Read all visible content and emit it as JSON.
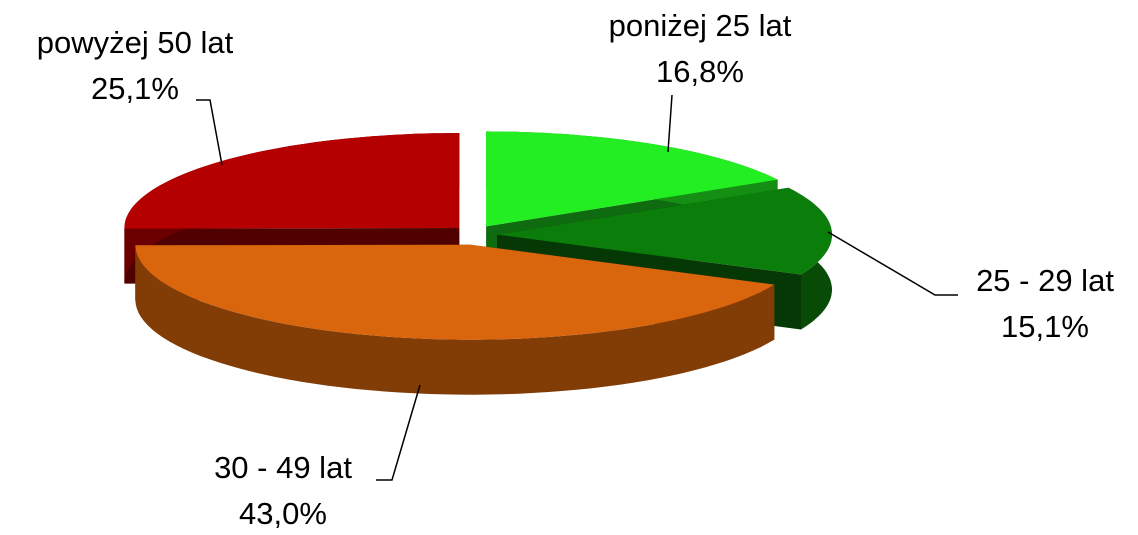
{
  "chart_data": {
    "type": "pie",
    "categories": [
      "poniżej 25 lat",
      "25 - 29 lat",
      "30 - 49 lat",
      "powyżej 50 lat"
    ],
    "values": [
      16.8,
      15.1,
      43.0,
      25.1
    ],
    "value_labels": [
      "16,8%",
      "15,1%",
      "43,0%",
      "25,1%"
    ],
    "colors": [
      "#22ee22",
      "#0b7d0b",
      "#d9650c",
      "#b40000"
    ]
  }
}
